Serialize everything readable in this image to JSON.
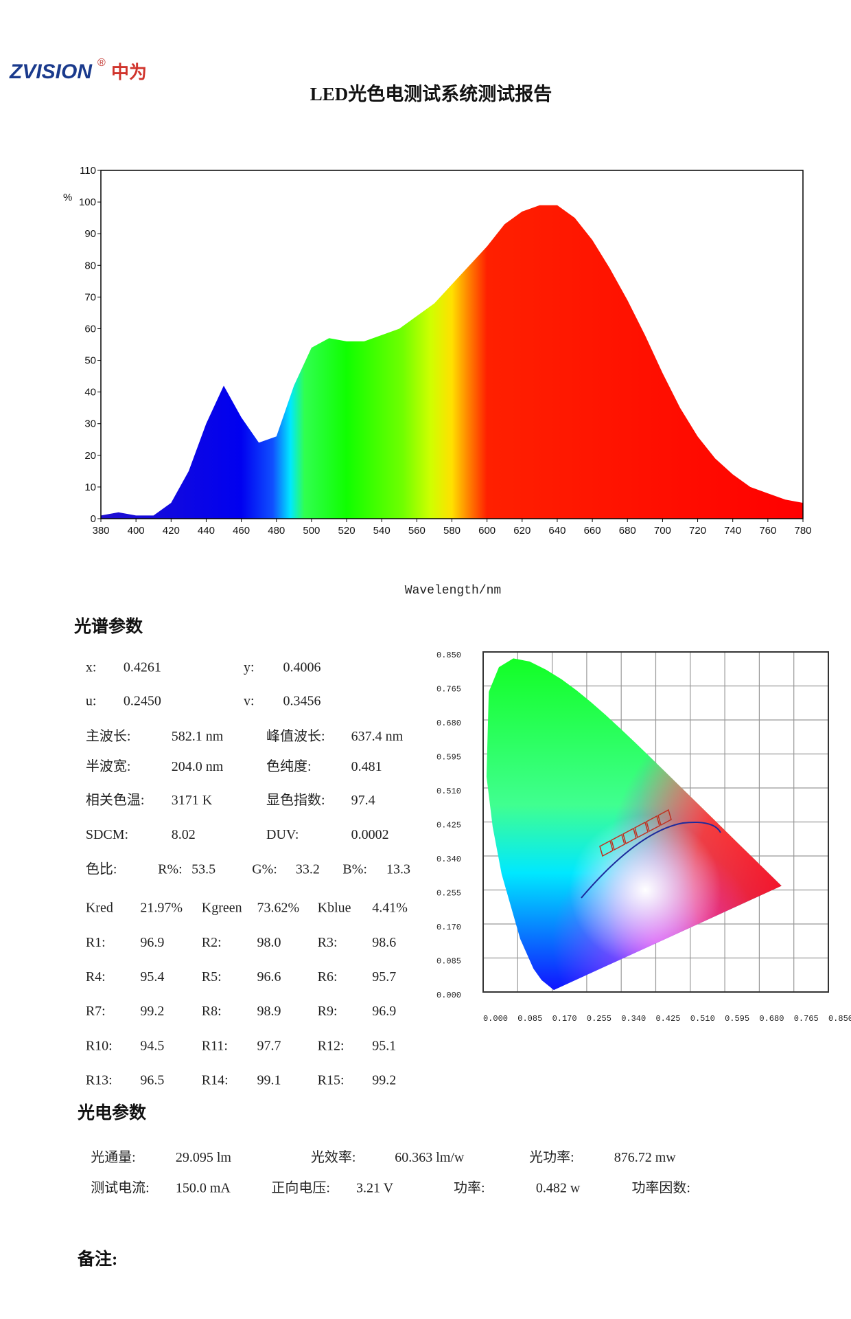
{
  "header": {
    "logo": "ZVISION",
    "logo_mark": "®",
    "logo_cn": "中为",
    "title": "LED光色电测试系统测试报告"
  },
  "chart_data": [
    {
      "type": "area",
      "xlabel": "Wavelength/nm",
      "ylabel": "%",
      "x": [
        380,
        390,
        400,
        410,
        420,
        430,
        440,
        450,
        460,
        470,
        480,
        490,
        500,
        510,
        520,
        530,
        540,
        550,
        560,
        570,
        580,
        590,
        600,
        610,
        620,
        630,
        640,
        650,
        660,
        670,
        680,
        690,
        700,
        710,
        720,
        730,
        740,
        750,
        760,
        770,
        780
      ],
      "values": [
        1,
        2,
        1,
        1,
        5,
        15,
        30,
        42,
        32,
        24,
        26,
        42,
        54,
        57,
        56,
        56,
        58,
        60,
        64,
        68,
        74,
        80,
        86,
        93,
        97,
        99,
        99,
        95,
        88,
        79,
        69,
        58,
        46,
        35,
        26,
        19,
        14,
        10,
        8,
        6,
        5
      ],
      "xlim": [
        380,
        780
      ],
      "ylim": [
        0,
        110
      ],
      "xticks": [
        380,
        400,
        420,
        440,
        460,
        480,
        500,
        520,
        540,
        560,
        580,
        600,
        620,
        640,
        660,
        680,
        700,
        720,
        740,
        760,
        780
      ],
      "yticks": [
        0,
        10,
        20,
        30,
        40,
        50,
        60,
        70,
        80,
        90,
        100,
        110
      ]
    },
    {
      "type": "chromaticity",
      "xlim": [
        0,
        0.85
      ],
      "ylim": [
        0,
        0.85
      ],
      "grid": true,
      "xticks": [
        {
          "value": 0,
          "label": "0.000"
        },
        {
          "value": 0.085,
          "label": "0.085"
        },
        {
          "value": 0.17,
          "label": "0.170"
        },
        {
          "value": 0.255,
          "label": "0.255"
        },
        {
          "value": 0.34,
          "label": "0.340"
        },
        {
          "value": 0.425,
          "label": "0.425"
        },
        {
          "value": 0.51,
          "label": "0.510"
        },
        {
          "value": 0.595,
          "label": "0.595"
        },
        {
          "value": 0.68,
          "label": "0.680"
        },
        {
          "value": 0.765,
          "label": "0.765"
        },
        {
          "value": 0.85,
          "label": "0.850"
        }
      ],
      "yticks": [
        {
          "value": 0,
          "label": "0.000"
        },
        {
          "value": 0.085,
          "label": "0.085"
        },
        {
          "value": 0.17,
          "label": "0.170"
        },
        {
          "value": 0.255,
          "label": "0.255"
        },
        {
          "value": 0.34,
          "label": "0.340"
        },
        {
          "value": 0.425,
          "label": "0.425"
        },
        {
          "value": 0.51,
          "label": "0.510"
        },
        {
          "value": 0.595,
          "label": "0.595"
        },
        {
          "value": 0.68,
          "label": "0.680"
        },
        {
          "value": 0.765,
          "label": "0.765"
        },
        {
          "value": 0.85,
          "label": "0.850"
        }
      ]
    }
  ],
  "spectral_params": {
    "heading": "光谱参数",
    "rows": [
      [
        "x:",
        "0.4261",
        "y:",
        "0.4006"
      ],
      [
        "u:",
        "0.2450",
        "v:",
        "0.3456"
      ],
      [
        "主波长:",
        "582.1 nm",
        "峰值波长:",
        "637.4 nm"
      ],
      [
        "半波宽:",
        "204.0 nm",
        "色纯度:",
        "0.481"
      ],
      [
        "相关色温:",
        "3171 K",
        "显色指数:",
        "97.4"
      ],
      [
        "SDCM:",
        "8.02",
        "DUV:",
        "0.0002"
      ],
      [
        "色比:",
        "R%:",
        "53.5",
        "G%:",
        "33.2",
        "B%:",
        "13.3"
      ],
      [
        "Kred",
        "21.97%",
        "Kgreen",
        "73.62%",
        "Kblue",
        "4.41%"
      ],
      [
        "R1:",
        "96.9",
        "R2:",
        "98.0",
        "R3:",
        "98.6"
      ],
      [
        "R4:",
        "95.4",
        "R5:",
        "96.6",
        "R6:",
        "95.7"
      ],
      [
        "R7:",
        "99.2",
        "R8:",
        "98.9",
        "R9:",
        "96.9"
      ],
      [
        "R10:",
        "94.5",
        "R11:",
        "97.7",
        "R12:",
        "95.1"
      ],
      [
        "R13:",
        "96.5",
        "R14:",
        "99.1",
        "R15:",
        "99.2"
      ]
    ]
  },
  "photoelectric_params": {
    "heading": "光电参数",
    "rows": [
      [
        "光通量:",
        "29.095 lm",
        "光效率:",
        "60.363 lm/w",
        "光功率:",
        "876.72 mw"
      ],
      [
        "测试电流:",
        "150.0 mA",
        "正向电压:",
        "3.21 V",
        "功率:",
        "0.482 w",
        "功率因数:"
      ]
    ]
  },
  "remarks": {
    "label": "备注:"
  }
}
